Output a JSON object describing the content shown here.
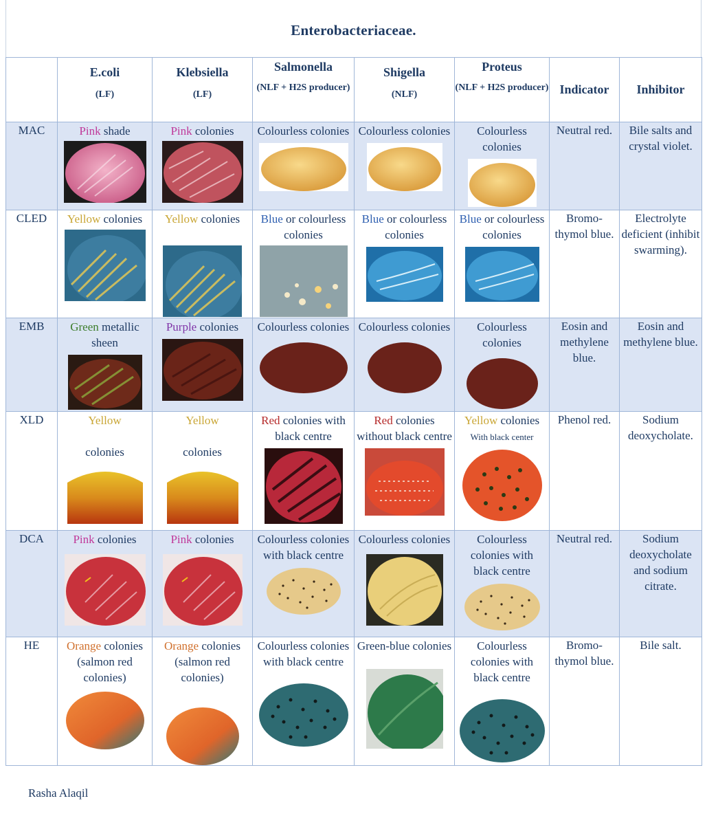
{
  "title": "Enterobacteriaceae.",
  "footer": "Rasha Alaqil",
  "columns": [
    {
      "name": "E.coli",
      "sub": "(LF)"
    },
    {
      "name": "Klebsiella",
      "sub": "(LF)"
    },
    {
      "name": "Salmonella",
      "sub": "(NLF + H2S producer)"
    },
    {
      "name": "Shigella",
      "sub": "(NLF)"
    },
    {
      "name": "Proteus",
      "sub": "(NLF + H2S producer)"
    },
    {
      "name": "Indicator",
      "sub": ""
    },
    {
      "name": "Inhibitor",
      "sub": ""
    }
  ],
  "rows": [
    {
      "medium": "MAC",
      "ecoli": {
        "color_word": "Pink",
        "rest": "shade"
      },
      "klebsiella": {
        "color_word": "Pink",
        "rest": "colonies"
      },
      "salmonella": {
        "text": "Colourless colonies"
      },
      "shigella": {
        "text": "Colourless colonies"
      },
      "proteus": {
        "text": "Colourless colonies"
      },
      "indicator": "Neutral red.",
      "inhibitor": "Bile salts and crystal violet."
    },
    {
      "medium": "CLED",
      "ecoli": {
        "color_word": "Yellow",
        "rest": "colonies"
      },
      "klebsiella": {
        "color_word": "Yellow",
        "rest": "colonies"
      },
      "salmonella": {
        "color_word": "Blue",
        "rest": "or colourless colonies"
      },
      "shigella": {
        "color_word": "Blue",
        "rest": "or colourless colonies"
      },
      "proteus": {
        "color_word": "Blue",
        "rest": "or colourless colonies"
      },
      "indicator": "Bromo-thymol blue.",
      "inhibitor": "Electrolyte deficient (inhibit swarming)."
    },
    {
      "medium": "EMB",
      "ecoli": {
        "color_word": "Green",
        "rest": "metallic sheen"
      },
      "klebsiella": {
        "color_word": "Purple",
        "rest": "colonies"
      },
      "salmonella": {
        "text": "Colourless colonies"
      },
      "shigella": {
        "text": "Colourless colonies"
      },
      "proteus": {
        "text": "Colourless colonies"
      },
      "indicator": "Eosin and methylene blue.",
      "inhibitor": "Eosin and methylene blue."
    },
    {
      "medium": "XLD",
      "ecoli": {
        "color_word": "Yellow",
        "rest": "colonies"
      },
      "klebsiella": {
        "color_word": "Yellow",
        "rest": "colonies"
      },
      "salmonella": {
        "color_word": "Red",
        "rest": "colonies with black centre"
      },
      "shigella": {
        "color_word": "Red",
        "rest": "colonies without black centre"
      },
      "proteus": {
        "color_word": "Yellow",
        "rest": "colonies",
        "note": "With black center"
      },
      "indicator": "Phenol red.",
      "inhibitor": "Sodium deoxycholate."
    },
    {
      "medium": "DCA",
      "ecoli": {
        "color_word": "Pink",
        "rest": "colonies"
      },
      "klebsiella": {
        "color_word": "Pink",
        "rest": "colonies"
      },
      "salmonella": {
        "text": "Colourless colonies with black centre"
      },
      "shigella": {
        "text": "Colourless colonies"
      },
      "proteus": {
        "text": "Colourless colonies with black centre"
      },
      "indicator": "Neutral red.",
      "inhibitor": "Sodium deoxycholate and sodium citrate."
    },
    {
      "medium": "HE",
      "ecoli": {
        "color_word": "Orange",
        "rest": "colonies (salmon red colonies)"
      },
      "klebsiella": {
        "color_word": "Orange",
        "rest": "colonies (salmon red colonies)"
      },
      "salmonella": {
        "text": "Colourless colonies with black centre"
      },
      "shigella": {
        "text": "Green-blue colonies"
      },
      "proteus": {
        "text": "Colourless colonies with black centre"
      },
      "indicator": "Bromo-thymol blue.",
      "inhibitor": "Bile salt."
    }
  ],
  "colors": {
    "header_text": "#1f3b63",
    "row_shade": "#dbe4f4",
    "grid": "#9fb6d8",
    "pink": "#c0399a",
    "yellow": "#c9a635",
    "blue": "#2e5fb0",
    "green": "#3d7d2c",
    "purple": "#8035a8",
    "red": "#b52a2a",
    "orange": "#d0702d"
  }
}
